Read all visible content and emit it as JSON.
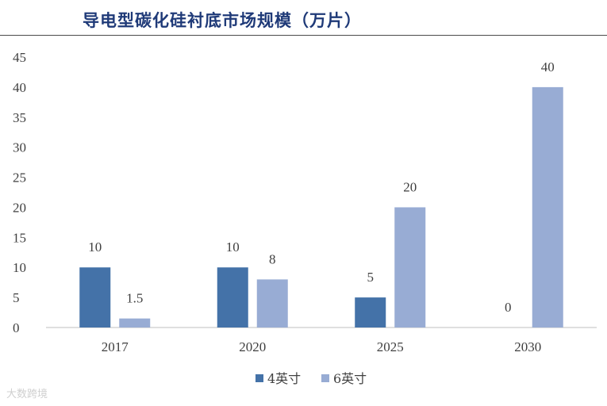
{
  "header": {
    "title": "导电型碳化硅衬底市场规模（万片）"
  },
  "watermark": "大数跨境",
  "colors": {
    "title": "#1f3a78",
    "series_4in": "#4472a8",
    "series_6in": "#98acd4"
  },
  "chart_data": {
    "type": "bar",
    "title": "导电型碳化硅衬底市场规模（万片）",
    "xlabel": "",
    "ylabel": "",
    "categories": [
      "2017",
      "2020",
      "2025",
      "2030"
    ],
    "series": [
      {
        "name": "4英寸",
        "color": "#4472a8",
        "values": [
          10,
          10,
          5,
          0
        ]
      },
      {
        "name": "6英寸",
        "color": "#98acd4",
        "values": [
          1.5,
          8,
          20,
          40
        ]
      }
    ],
    "ylim": [
      0,
      45
    ],
    "yticks": [
      0,
      5,
      10,
      15,
      20,
      25,
      30,
      35,
      40,
      45
    ],
    "data_labels": [
      [
        "10",
        "10",
        "5",
        "0"
      ],
      [
        "1.5",
        "8",
        "20",
        "40"
      ]
    ],
    "grid": false,
    "legend_position": "bottom"
  }
}
